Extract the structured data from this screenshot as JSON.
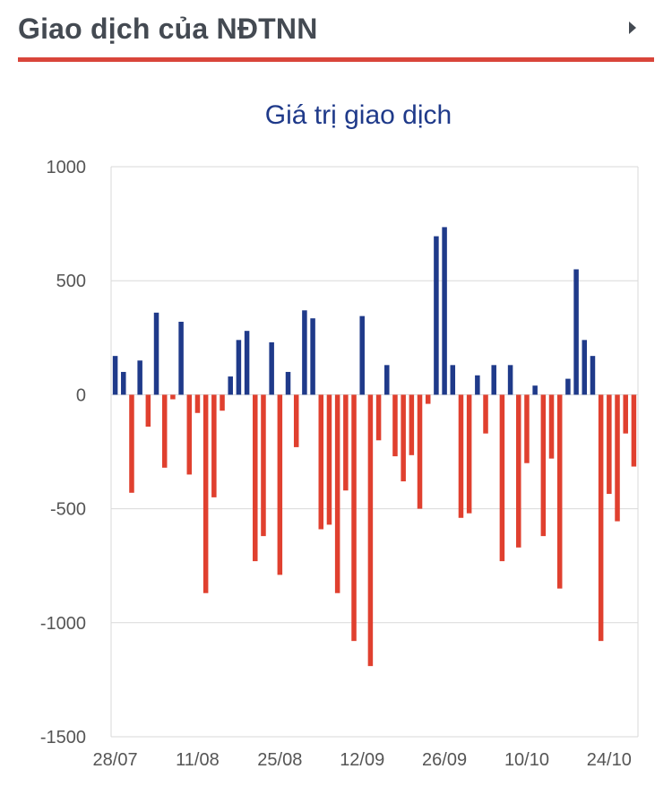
{
  "header": {
    "title": "Giao dịch của NĐTNN",
    "accent_color": "#d9453a",
    "arrow_icon": "chevron-right-icon"
  },
  "chart_data": {
    "type": "bar",
    "title": "Giá trị giao dịch",
    "xlabel": "",
    "ylabel": "",
    "ylim": [
      -1500,
      1000
    ],
    "yticks": [
      1000,
      500,
      0,
      -500,
      -1000,
      -1500
    ],
    "grid": true,
    "legend": "none",
    "positive_color": "#1f3a8a",
    "negative_color": "#e0402f",
    "title_color": "#1f3a8a",
    "x_tick_labels": [
      {
        "label": "28/07",
        "index": 0
      },
      {
        "label": "11/08",
        "index": 10
      },
      {
        "label": "25/08",
        "index": 20
      },
      {
        "label": "12/09",
        "index": 30
      },
      {
        "label": "26/09",
        "index": 40
      },
      {
        "label": "10/10",
        "index": 50
      },
      {
        "label": "24/10",
        "index": 60
      }
    ],
    "values": [
      170,
      100,
      -430,
      150,
      -140,
      360,
      -320,
      -20,
      320,
      -350,
      -80,
      -870,
      -450,
      -70,
      80,
      240,
      280,
      -730,
      -620,
      230,
      -790,
      100,
      -230,
      370,
      335,
      -590,
      -570,
      -870,
      -420,
      -1080,
      345,
      -1190,
      -200,
      130,
      -270,
      -380,
      -265,
      -500,
      -40,
      695,
      735,
      130,
      -540,
      -520,
      85,
      -170,
      130,
      -730,
      130,
      -670,
      -300,
      40,
      -620,
      -280,
      -850,
      70,
      550,
      240,
      170,
      -1080,
      -435,
      -555,
      -170,
      -315
    ]
  }
}
